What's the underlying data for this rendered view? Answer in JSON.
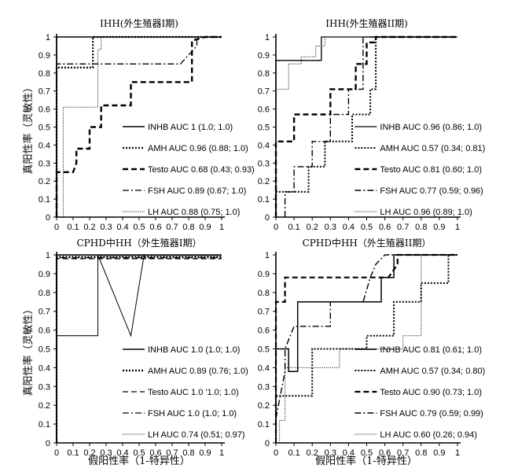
{
  "axis_labels": {
    "ylabel": "真阳性率（灵敏性）",
    "xlabel": "假阳性率（1-特异性）"
  },
  "chart_data": [
    {
      "type": "line",
      "title": "IHH(外生殖器I期)",
      "xlim": [
        0,
        1
      ],
      "ylim": [
        0,
        1
      ],
      "x_ticks": [
        "0",
        "0.1",
        "0.2",
        "0.3",
        "0.4",
        "0.5",
        "0.6",
        "0.7",
        "0.8",
        "0.9",
        "1"
      ],
      "y_ticks": [
        "0",
        "0.1",
        "0.2",
        "0.3",
        "0.4",
        "0.5",
        "0.6",
        "0.7",
        "0.8",
        "0.9",
        "1"
      ],
      "legend_position": "bottom-right",
      "series": [
        {
          "name": "INHB",
          "label": "INHB  AUC 1 (1.0; 1.0)",
          "style": "solid",
          "width": 1.5,
          "x": [
            0,
            0,
            1
          ],
          "y": [
            0,
            1,
            1
          ]
        },
        {
          "name": "AMH",
          "label": "AMH  AUC 0.96 (0.88; 1.0)",
          "style": "dotted",
          "width": 2.2,
          "x": [
            0,
            0,
            0.22,
            0.22,
            1
          ],
          "y": [
            0,
            0.83,
            0.83,
            1,
            1
          ]
        },
        {
          "name": "Testo",
          "label": "Testo  AUC 0.68 (0.43; 0.93)",
          "style": "dash",
          "width": 2.4,
          "x": [
            0,
            0,
            0.1,
            0.12,
            0.12,
            0.2,
            0.2,
            0.27,
            0.27,
            0.45,
            0.45,
            0.6,
            0.6,
            0.82,
            0.82,
            0.9,
            1
          ],
          "y": [
            0,
            0.25,
            0.25,
            0.3,
            0.38,
            0.38,
            0.5,
            0.5,
            0.62,
            0.62,
            0.75,
            0.75,
            0.75,
            0.75,
            0.98,
            1,
            1
          ]
        },
        {
          "name": "FSH",
          "label": "FSH  AUC 0.89 (0.67; 1.0)",
          "style": "dashdot",
          "width": 1.3,
          "x": [
            0,
            0,
            0.75,
            0.85,
            0.85,
            1
          ],
          "y": [
            0,
            0.85,
            0.85,
            0.95,
            1,
            1
          ]
        },
        {
          "name": "LH",
          "label": "LH  AUC 0.88 (0.75; 1.0)",
          "style": "fine",
          "width": 1,
          "x": [
            0.04,
            0.04,
            0.25,
            0.25,
            0.27,
            0.27,
            1
          ],
          "y": [
            0,
            0.61,
            0.61,
            0.93,
            0.93,
            1,
            1
          ]
        }
      ]
    },
    {
      "type": "line",
      "title": "IHH(外生殖器II期)",
      "xlim": [
        0,
        1
      ],
      "ylim": [
        0,
        1
      ],
      "x_ticks": [
        "0",
        "0.1",
        "0.2",
        "0.3",
        "0.4",
        "0.5",
        "0.6",
        "0.7",
        "0.8",
        "0.9",
        "1"
      ],
      "y_ticks": [
        "0",
        "0.1",
        "0.2",
        "0.3",
        "0.4",
        "0.5",
        "0.6",
        "0.7",
        "0.8",
        "0.9",
        "1"
      ],
      "legend_position": "bottom-right",
      "series": [
        {
          "name": "INHB",
          "label": "INHB  AUC 0.96 (0.86; 1.0)",
          "style": "solid",
          "width": 1.3,
          "x": [
            0,
            0,
            0.25,
            0.25,
            1
          ],
          "y": [
            0,
            0.87,
            0.87,
            1,
            1
          ]
        },
        {
          "name": "AMH",
          "label": "AMH  AUC 0.57 (0.34; 0.81)",
          "style": "dotted",
          "width": 2,
          "x": [
            0,
            0,
            0.18,
            0.18,
            0.27,
            0.27,
            0.42,
            0.42,
            0.52,
            0.52,
            0.55,
            0.55,
            1
          ],
          "y": [
            0,
            0.14,
            0.14,
            0.28,
            0.28,
            0.42,
            0.42,
            0.57,
            0.57,
            0.71,
            0.71,
            1,
            1
          ]
        },
        {
          "name": "Testo",
          "label": "Testo  AUC 0.81 (0.60; 1.0)",
          "style": "dash",
          "width": 2.4,
          "x": [
            0,
            0,
            0.1,
            0.1,
            0.3,
            0.3,
            0.44,
            0.44,
            0.5,
            0.5,
            0.55,
            0.55,
            1
          ],
          "y": [
            0,
            0.42,
            0.42,
            0.57,
            0.57,
            0.71,
            0.71,
            0.85,
            0.85,
            0.97,
            0.97,
            1,
            1
          ]
        },
        {
          "name": "FSH",
          "label": "FSH  AUC 0.77 (0.59; 0.96)",
          "style": "dashdot",
          "width": 1.4,
          "x": [
            0.05,
            0.05,
            0.1,
            0.1,
            0.2,
            0.2,
            0.3,
            0.3,
            0.4,
            0.4,
            0.48,
            0.48,
            1
          ],
          "y": [
            0,
            0.14,
            0.14,
            0.28,
            0.28,
            0.42,
            0.42,
            0.57,
            0.57,
            0.71,
            0.71,
            1,
            1
          ]
        },
        {
          "name": "LH",
          "label": "LH  AUC 0.96 (0.89; 1.0)",
          "style": "fine",
          "width": 1,
          "x": [
            0,
            0,
            0.07,
            0.07,
            0.14,
            0.14,
            0.22,
            0.22,
            0.27,
            0.27,
            1
          ],
          "y": [
            0,
            0.71,
            0.71,
            0.85,
            0.85,
            0.89,
            0.89,
            0.95,
            0.95,
            1,
            1
          ]
        }
      ]
    },
    {
      "type": "line",
      "title": "CPHD中HH（外生殖器I期）",
      "xlim": [
        0,
        1
      ],
      "ylim": [
        0,
        1
      ],
      "x_ticks": [
        "0",
        "0.1",
        "0.2",
        "0.3",
        "0.4",
        "0.5",
        "0.6",
        "0.7",
        "0.8",
        "0.9",
        "1"
      ],
      "y_ticks": [
        "0",
        "0.1",
        "0.2",
        "0.3",
        "0.4",
        "0.5",
        "0.6",
        "0.7",
        "0.8",
        "0.9",
        "1"
      ],
      "legend_position": "bottom-right",
      "series": [
        {
          "name": "INHB",
          "label": "INHB  AUC 1.0 (1.0; 1.0)",
          "style": "solid",
          "width": 1.5,
          "x": [
            0,
            0,
            1
          ],
          "y": [
            0,
            1,
            1
          ]
        },
        {
          "name": "AMH",
          "label": "AMH  AUC 0.89 (0.76; 1.0)",
          "style": "dotted",
          "width": 2.2,
          "x": [
            0,
            0,
            1
          ],
          "y": [
            0,
            0.99,
            0.99
          ]
        },
        {
          "name": "Testo",
          "label": "Testo  AUC 1.0 '1.0; 1.0)",
          "style": "dash",
          "width": 1.3,
          "x": [
            0,
            0,
            1
          ],
          "y": [
            0,
            0.98,
            0.98
          ]
        },
        {
          "name": "FSH",
          "label": "FSH  AUC 1.0 (1.0; 1.0)",
          "style": "dashdot",
          "width": 1.3,
          "x": [
            0,
            0,
            1
          ],
          "y": [
            0,
            0.985,
            0.985
          ]
        },
        {
          "name": "LH",
          "label": "LH  AUC 0.74 (0.51; 0.97)",
          "style": "fine",
          "width": 1,
          "x": [
            0,
            0,
            0.25,
            0.25,
            0.26,
            0.26,
            1
          ],
          "y": [
            0,
            0.57,
            0.57,
            1,
            1,
            0.995,
            0.995
          ]
        },
        {
          "name": "LH-step",
          "label": "",
          "style": "solid",
          "width": 1,
          "x": [
            0,
            0.25,
            0.25,
            0.45,
            0.53,
            0.53,
            1
          ],
          "y": [
            0.57,
            0.57,
            1,
            0.57,
            1,
            1,
            1
          ]
        }
      ]
    },
    {
      "type": "line",
      "title": "CPHD中HH（外生殖器II期）",
      "xlim": [
        0,
        1
      ],
      "ylim": [
        0,
        1
      ],
      "x_ticks": [
        "0",
        "0.1",
        "0.2",
        "0.3",
        "0.4",
        "0.5",
        "0.6",
        "0.7",
        "0.8",
        "0.9",
        "1"
      ],
      "y_ticks": [
        "0",
        "0.1",
        "0.2",
        "0.3",
        "0.4",
        "0.5",
        "0.6",
        "0.7",
        "0.8",
        "0.9",
        "1"
      ],
      "legend_position": "bottom-right",
      "series": [
        {
          "name": "INHB",
          "label": "INHB  AUC 0.81 (0.61; 1.0)",
          "style": "solid",
          "width": 1.5,
          "x": [
            0,
            0,
            0.07,
            0.07,
            0.12,
            0.12,
            0.2,
            0.2,
            0.58,
            0.58,
            0.65,
            0.65,
            1
          ],
          "y": [
            0,
            0.5,
            0.5,
            0.38,
            0.38,
            0.75,
            0.75,
            0.75,
            0.75,
            0.88,
            0.88,
            1,
            1
          ]
        },
        {
          "name": "AMH",
          "label": "AMH  AUC 0.57 (0.34; 0.80)",
          "style": "dotted",
          "width": 2,
          "x": [
            0,
            0,
            0.2,
            0.2,
            0.5,
            0.5,
            0.65,
            0.65,
            0.8,
            0.8,
            0.95,
            0.95,
            1
          ],
          "y": [
            0,
            0.25,
            0.25,
            0.5,
            0.5,
            0.57,
            0.57,
            0.75,
            0.75,
            0.85,
            0.85,
            1,
            1
          ]
        },
        {
          "name": "Testo",
          "label": "Testo  AUC 0.90 (0.73; 1.0)",
          "style": "dash",
          "width": 2.2,
          "x": [
            0,
            0,
            0.05,
            0.05,
            0.62,
            0.67,
            0.67,
            1
          ],
          "y": [
            0,
            0.75,
            0.75,
            0.88,
            0.88,
            0.95,
            1,
            1
          ]
        },
        {
          "name": "FSH",
          "label": "FSH  AUC 0.79 (0.59; 0.99)",
          "style": "dashdot",
          "width": 1.4,
          "x": [
            0,
            0.05,
            0.05,
            0.1,
            0.3,
            0.3,
            0.48,
            0.52,
            0.55,
            0.6,
            0.63,
            1
          ],
          "y": [
            0.13,
            0.38,
            0.5,
            0.62,
            0.62,
            0.75,
            0.75,
            0.88,
            0.95,
            1,
            1,
            1
          ]
        },
        {
          "name": "LH",
          "label": "LH  AUC 0.60 (0.26; 0.94)",
          "style": "fine",
          "width": 1,
          "x": [
            0.02,
            0.02,
            0.05,
            0.05,
            0.35,
            0.35,
            0.7,
            0.7,
            0.8,
            0.8,
            1
          ],
          "y": [
            0,
            0.12,
            0.12,
            0.4,
            0.4,
            0.5,
            0.5,
            0.57,
            0.57,
            1,
            1
          ]
        }
      ]
    }
  ]
}
